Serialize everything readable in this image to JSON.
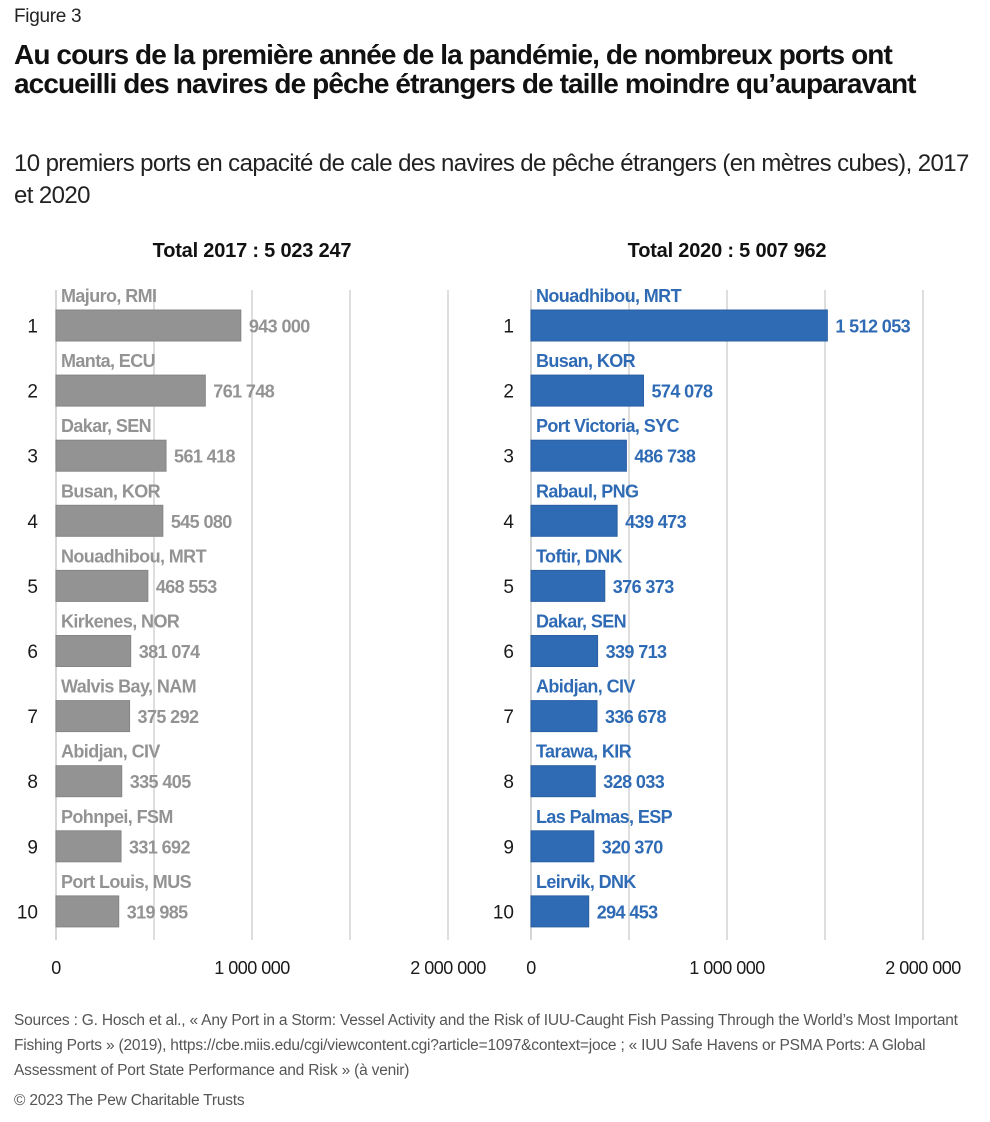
{
  "figure_label": "Figure 3",
  "title": "Au cours de la première année de la pandémie, de nombreux ports ont accueilli des navires de pêche étrangers de taille moindre qu’auparavant",
  "subtitle": "10 premiers ports en capacité de cale des navires de pêche étrangers (en mètres cubes), 2017 et 2020",
  "sources": "Sources : G. Hosch et al., « Any Port in a Storm: Vessel Activity and the Risk of IUU-Caught Fish Passing Through the World’s Most Important Fishing Ports » (2019), https://cbe.miis.edu/cgi/viewcontent.cgi?article=1097&context=joce ; « IUU Safe Havens or PSMA Ports: A Global Assessment of Port State Performance and Risk » (à venir)",
  "copyright": "© 2023 The Pew Charitable Trusts",
  "chart_data": [
    {
      "type": "bar",
      "orientation": "horizontal",
      "title": "Total 2017 : 5 023 247",
      "year": "2017",
      "color": "#939393",
      "label_color": "#939393",
      "xlim": [
        0,
        2000000
      ],
      "xticks": [
        0,
        1000000,
        2000000
      ],
      "xtick_labels": [
        "0",
        "1 000 000",
        "2 000 000"
      ],
      "gridlines": [
        0,
        500000,
        1000000,
        1500000,
        2000000
      ],
      "grid": true,
      "ranks": [
        "1",
        "2",
        "3",
        "4",
        "5",
        "6",
        "7",
        "8",
        "9",
        "10"
      ],
      "categories": [
        "Majuro, RMI",
        "Manta, ECU",
        "Dakar, SEN",
        "Busan, KOR",
        "Nouadhibou, MRT",
        "Kirkenes, NOR",
        "Walvis Bay, NAM",
        "Abidjan, CIV",
        "Pohnpei, FSM",
        "Port Louis, MUS"
      ],
      "values": [
        943000,
        761748,
        561418,
        545080,
        468553,
        381074,
        375292,
        335405,
        331692,
        319985
      ],
      "value_labels": [
        "943 000",
        "761 748",
        "561 418",
        "545 080",
        "468 553",
        "381 074",
        "375 292",
        "335 405",
        "331 692",
        "319 985"
      ]
    },
    {
      "type": "bar",
      "orientation": "horizontal",
      "title": "Total 2020 : 5 007 962",
      "year": "2020",
      "color": "#2f6bb5",
      "label_color": "#2f6bb5",
      "xlim": [
        0,
        2000000
      ],
      "xticks": [
        0,
        1000000,
        2000000
      ],
      "xtick_labels": [
        "0",
        "1 000 000",
        "2 000 000"
      ],
      "gridlines": [
        0,
        500000,
        1000000,
        1500000,
        2000000
      ],
      "grid": true,
      "ranks": [
        "1",
        "2",
        "3",
        "4",
        "5",
        "6",
        "7",
        "8",
        "9",
        "10"
      ],
      "categories": [
        "Nouadhibou, MRT",
        "Busan, KOR",
        "Port Victoria, SYC",
        "Rabaul, PNG",
        "Toftir, DNK",
        "Dakar, SEN",
        "Abidjan, CIV",
        "Tarawa, KIR",
        "Las Palmas, ESP",
        "Leirvik, DNK"
      ],
      "values": [
        1512053,
        574078,
        486738,
        439473,
        376373,
        339713,
        336678,
        328033,
        320370,
        294453
      ],
      "value_labels": [
        "1 512 053",
        "574 078",
        "486 738",
        "439 473",
        "376 373",
        "339 713",
        "336 678",
        "328 033",
        "320 370",
        "294 453"
      ]
    }
  ]
}
